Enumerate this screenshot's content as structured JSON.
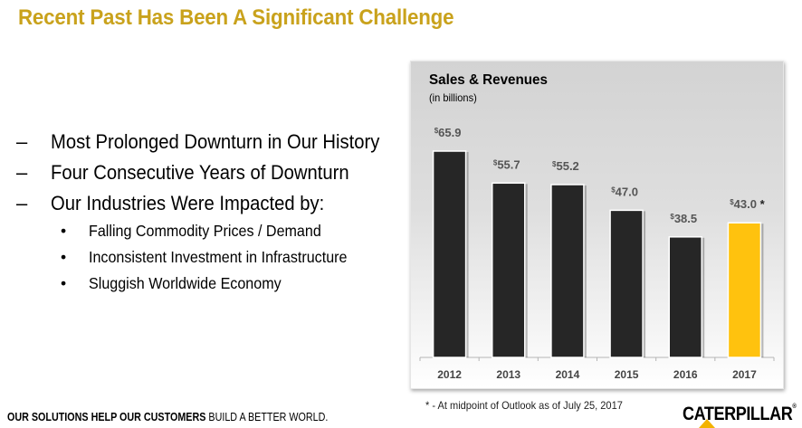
{
  "slide": {
    "title": "Recent Past Has Been A Significant Challenge",
    "bullets": [
      {
        "marker": "–",
        "text": "Most Prolonged Downturn in Our History",
        "level": 1
      },
      {
        "marker": "–",
        "text": "Four Consecutive Years of Downturn",
        "level": 1
      },
      {
        "marker": "–",
        "text": "Our Industries Were Impacted by:",
        "level": 1
      },
      {
        "marker": "•",
        "text": "Falling Commodity Prices / Demand",
        "level": 2
      },
      {
        "marker": "•",
        "text": "Inconsistent Investment in Infrastructure",
        "level": 2
      },
      {
        "marker": "•",
        "text": "Sluggish Worldwide Economy",
        "level": 2
      }
    ],
    "footnote": "* - At midpoint of Outlook as of July 25, 2017",
    "tagline_bold": "OUR SOLUTIONS HELP OUR CUSTOMERS",
    "tagline_regular": " BUILD A BETTER WORLD.",
    "logo_text": "CATERPILLAR",
    "logo_mark": "®"
  },
  "colors": {
    "title": "#c9a21c",
    "bar_default": "#262626",
    "bar_highlight": "#ffc20e",
    "logo_triangle": "#f3b300"
  },
  "chart_data": {
    "type": "bar",
    "title": "Sales & Revenues",
    "subtitle": "(in billions)",
    "categories": [
      "2012",
      "2013",
      "2014",
      "2015",
      "2016",
      "2017"
    ],
    "values": [
      65.9,
      55.7,
      55.2,
      47.0,
      38.5,
      43.0
    ],
    "value_labels": [
      "65.9",
      "55.7",
      "55.2",
      "47.0",
      "38.5",
      "43.0"
    ],
    "currency_prefix": "$",
    "label_suffixes": [
      "",
      "",
      "",
      "",
      "",
      " *"
    ],
    "highlight": [
      false,
      false,
      false,
      false,
      false,
      true
    ],
    "xlabel": "",
    "ylabel": "",
    "ylim": [
      0,
      70
    ],
    "grid": false,
    "legend": "none"
  }
}
